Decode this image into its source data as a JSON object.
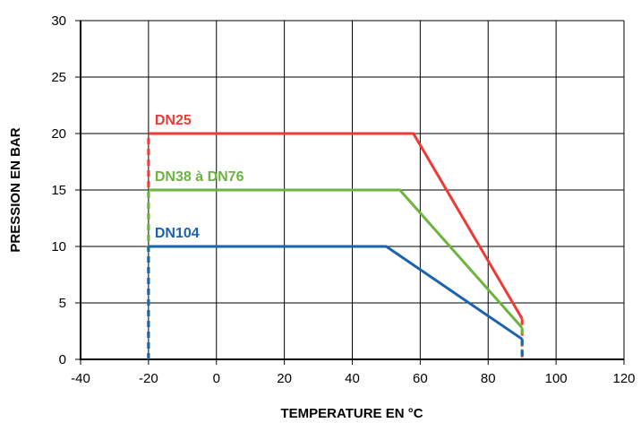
{
  "chart_data": {
    "type": "line",
    "title": "",
    "xlabel": "TEMPERATURE EN °C",
    "ylabel": "PRESSION EN BAR",
    "xlim": [
      -40,
      120
    ],
    "ylim": [
      0,
      30
    ],
    "x_ticks": [
      -40,
      -20,
      0,
      20,
      40,
      60,
      80,
      100,
      120
    ],
    "y_ticks": [
      0,
      5,
      10,
      15,
      20,
      25,
      30
    ],
    "grid": true,
    "legend": "inline labels",
    "series": [
      {
        "name": "DN25",
        "color": "#ee3a36",
        "points": [
          [
            -20,
            0
          ],
          [
            -20,
            20
          ],
          [
            58,
            20
          ],
          [
            90,
            3.6
          ],
          [
            90,
            0
          ]
        ]
      },
      {
        "name": "DN38 à DN76",
        "color": "#6cb33f",
        "points": [
          [
            -20,
            0
          ],
          [
            -20,
            15
          ],
          [
            54,
            15
          ],
          [
            90,
            2.8
          ],
          [
            90,
            0
          ]
        ]
      },
      {
        "name": "DN104",
        "color": "#1a64ad",
        "points": [
          [
            -20,
            0
          ],
          [
            -20,
            10
          ],
          [
            50,
            10
          ],
          [
            90,
            1.8
          ],
          [
            90,
            0
          ]
        ]
      }
    ]
  }
}
